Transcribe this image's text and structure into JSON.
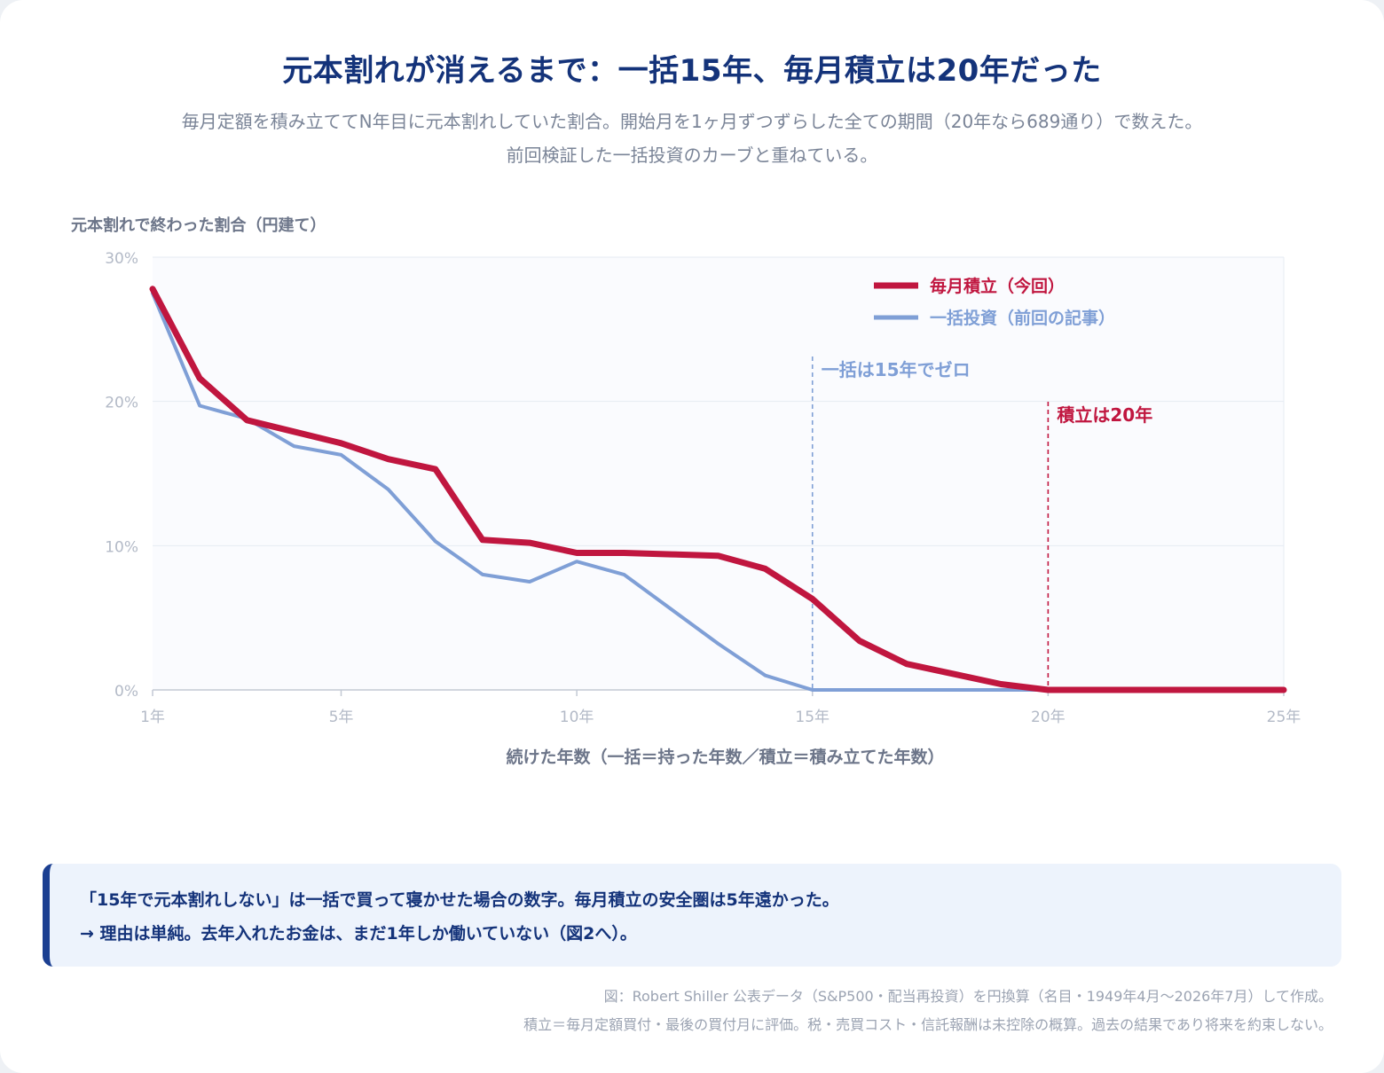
{
  "title": "元本割れが消えるまで：一括15年、毎月積立は20年だった",
  "subtitle": {
    "line1": "毎月定額を積み立ててN年目に元本割れしていた割合。開始月を1ヶ月ずつずらした全ての期間（20年なら689通り）で数えた。",
    "line2": "前回検証した一括投資のカーブと重ねている。"
  },
  "chart_data": {
    "type": "line",
    "ylabel": "元本割れで終わった割合（円建て）",
    "xlabel": "続けた年数（一括＝持った年数／積立＝積み立てた年数）",
    "xlim": [
      1,
      25
    ],
    "ylim": [
      0,
      30
    ],
    "x_ticks": [
      1,
      5,
      10,
      15,
      20,
      25
    ],
    "x_tick_labels": [
      "1年",
      "5年",
      "10年",
      "15年",
      "20年",
      "25年"
    ],
    "y_ticks": [
      0,
      10,
      20,
      30
    ],
    "y_tick_labels": [
      "0%",
      "10%",
      "20%",
      "30%"
    ],
    "grid": true,
    "legend_position": "top-right",
    "series": [
      {
        "name": "毎月積立（今回）",
        "color": "#c0163f",
        "x": [
          1,
          2,
          3,
          4,
          5,
          6,
          7,
          8,
          9,
          10,
          11,
          12,
          13,
          14,
          15,
          16,
          17,
          18,
          19,
          20,
          21,
          22,
          23,
          24,
          25
        ],
        "values": [
          27.8,
          21.6,
          18.7,
          17.9,
          17.1,
          16.0,
          15.3,
          10.4,
          10.2,
          9.5,
          9.5,
          9.4,
          9.3,
          8.4,
          6.3,
          3.4,
          1.8,
          1.1,
          0.4,
          0,
          0,
          0,
          0,
          0,
          0
        ]
      },
      {
        "name": "一括投資（前回の記事）",
        "color": "#7f9fd6",
        "x": [
          1,
          2,
          3,
          4,
          5,
          6,
          7,
          8,
          9,
          10,
          11,
          12,
          13,
          14,
          15,
          16,
          17,
          18,
          19,
          20,
          21,
          22,
          23,
          24,
          25
        ],
        "values": [
          27.5,
          19.7,
          18.8,
          16.9,
          16.3,
          13.9,
          10.3,
          8.0,
          7.5,
          8.9,
          8.0,
          5.6,
          3.2,
          1.0,
          0,
          0,
          0,
          0,
          0,
          0,
          0,
          0,
          0,
          0,
          0
        ]
      }
    ],
    "annotations": [
      {
        "x": 15,
        "text": "一括は15年でゼロ",
        "color": "#7f9fd6"
      },
      {
        "x": 20,
        "text": "積立は20年",
        "color": "#c0163f"
      }
    ]
  },
  "callout": {
    "line1": "「15年で元本割れしない」は一括で買って寝かせた場合の数字。毎月積立の安全圏は5年遠かった。",
    "line2": "→ 理由は単純。去年入れたお金は、まだ1年しか働いていない（図2へ）。"
  },
  "footnote": {
    "line1": "図：Robert Shiller 公表データ（S&P500・配当再投資）を円換算（名目・1949年4月〜2026年7月）して作成。",
    "line2": "積立＝毎月定額買付・最後の買付月に評価。税・売買コスト・信託報酬は未控除の概算。過去の結果であり将来を約束しない。"
  },
  "colors": {
    "title": "#14337a",
    "accent_red": "#c0163f",
    "accent_blue": "#7f9fd6",
    "muted_text": "#7a8497",
    "plot_bg": "#fafbfe"
  }
}
